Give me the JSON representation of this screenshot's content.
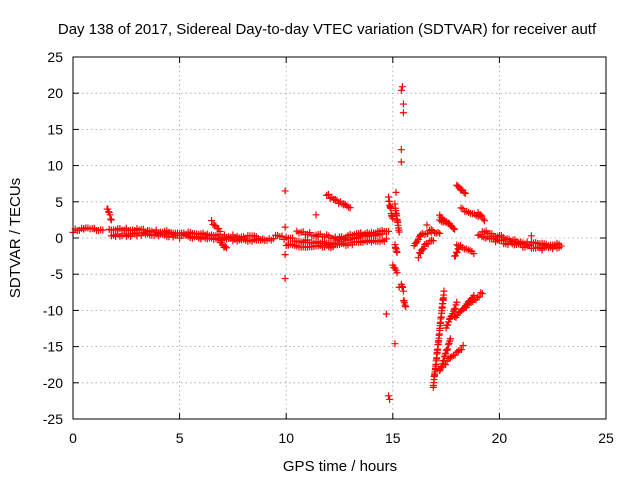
{
  "chart_data": {
    "type": "scatter",
    "title": "Day 138 of 2017, Sidereal Day-to-day VTEC variation (SDTVAR) for receiver autf",
    "xlabel": "GPS time / hours",
    "ylabel": "SDTVAR / TECUs",
    "xlim": [
      0,
      25
    ],
    "ylim": [
      -25,
      25
    ],
    "xticks": [
      "0",
      "5",
      "10",
      "15",
      "20",
      "25"
    ],
    "yticks": [
      "25",
      "20",
      "15",
      "10",
      "5",
      "0",
      "-5",
      "-10",
      "-15",
      "-20",
      "-25"
    ],
    "grid": true,
    "marker": "+",
    "color": "#ff0000",
    "segments": [
      {
        "x": [
          0.0,
          0.5,
          1.0,
          1.4
        ],
        "y": [
          1.0,
          1.3,
          1.2,
          1.0
        ]
      },
      {
        "x": [
          1.6,
          1.8
        ],
        "y": [
          4.2,
          2.5
        ]
      },
      {
        "x": [
          1.7,
          2.5,
          3.5,
          4.5,
          5.5,
          6.5,
          7.5,
          8.5,
          9.4
        ],
        "y": [
          1.0,
          1.2,
          1.0,
          0.8,
          0.6,
          0.4,
          0.2,
          0.1,
          -0.2
        ]
      },
      {
        "x": [
          1.8,
          3.0,
          4.0,
          5.0,
          6.0,
          7.0,
          8.0,
          9.0
        ],
        "y": [
          0.3,
          0.5,
          0.5,
          0.2,
          0.0,
          -0.2,
          -0.3,
          -0.3
        ]
      },
      {
        "x": [
          6.5,
          6.9
        ],
        "y": [
          2.3,
          1.0
        ]
      },
      {
        "x": [
          6.9,
          7.2
        ],
        "y": [
          -0.5,
          -1.5
        ]
      },
      {
        "x": [
          9.5,
          10.8,
          12.0,
          13.5,
          14.8
        ],
        "y": [
          0.2,
          -0.4,
          -0.8,
          0.3,
          0.8
        ]
      },
      {
        "x": [
          10.0,
          11.0,
          12.0,
          13.5,
          14.7
        ],
        "y": [
          -1.0,
          -1.3,
          -1.2,
          -0.6,
          -0.3
        ]
      },
      {
        "x": [
          10.5,
          11.5,
          12.5,
          13.5,
          14.5
        ],
        "y": [
          0.8,
          0.4,
          0.0,
          0.6,
          0.9
        ]
      },
      {
        "x": [
          11.9,
          12.3,
          12.7,
          13.0
        ],
        "y": [
          6.0,
          5.2,
          4.6,
          4.0
        ]
      },
      {
        "x": [
          14.8,
          15.0
        ],
        "y": [
          5.5,
          2.5
        ]
      },
      {
        "x": [
          15.1,
          15.3
        ],
        "y": [
          4.5,
          1.0
        ]
      },
      {
        "x": [
          15.0,
          15.2
        ],
        "y": [
          -3.8,
          -4.8
        ]
      },
      {
        "x": [
          15.1,
          15.2
        ],
        "y": [
          -1.0,
          -2.2
        ]
      },
      {
        "x": [
          15.4,
          15.5
        ],
        "y": [
          -6.5,
          -7.2
        ]
      },
      {
        "x": [
          15.5,
          15.6
        ],
        "y": [
          -8.5,
          -9.5
        ]
      },
      {
        "x": [
          16.0,
          16.3,
          16.8,
          17.2
        ],
        "y": [
          -1.0,
          0.5,
          1.0,
          0.5
        ]
      },
      {
        "x": [
          16.2,
          16.5,
          16.9
        ],
        "y": [
          -2.5,
          -1.0,
          -0.3
        ]
      },
      {
        "x": [
          17.2,
          17.6,
          17.9
        ],
        "y": [
          2.5,
          2.0,
          1.0
        ]
      },
      {
        "x": [
          17.9,
          18.1
        ],
        "y": [
          -2.6,
          -1.4
        ]
      },
      {
        "x": [
          17.2,
          17.5
        ],
        "y": [
          3.0,
          2.0
        ]
      },
      {
        "x": [
          18.0,
          18.4
        ],
        "y": [
          7.5,
          6.0
        ]
      },
      {
        "x": [
          18.2,
          19.0
        ],
        "y": [
          4.0,
          3.0
        ]
      },
      {
        "x": [
          19.0,
          19.3
        ],
        "y": [
          3.5,
          2.5
        ]
      },
      {
        "x": [
          18.0,
          18.8
        ],
        "y": [
          -1.0,
          -2.0
        ]
      },
      {
        "x": [
          16.9,
          17.4
        ],
        "y": [
          -20.5,
          -7.5
        ]
      },
      {
        "x": [
          17.2,
          17.7
        ],
        "y": [
          -18.5,
          -14.0
        ]
      },
      {
        "x": [
          17.4,
          18.3
        ],
        "y": [
          -17.5,
          -15.0
        ]
      },
      {
        "x": [
          17.5,
          18.0
        ],
        "y": [
          -12.5,
          -9.0
        ]
      },
      {
        "x": [
          17.9,
          18.8
        ],
        "y": [
          -11.0,
          -8.0
        ]
      },
      {
        "x": [
          18.3,
          19.2
        ],
        "y": [
          -10.0,
          -7.5
        ]
      },
      {
        "x": [
          19.0,
          20.0,
          21.0,
          22.0,
          22.9
        ],
        "y": [
          0.5,
          -0.5,
          -1.0,
          -1.5,
          -1.2
        ]
      },
      {
        "x": [
          19.2,
          20.0,
          21.0,
          22.0,
          22.8
        ],
        "y": [
          0.9,
          0.2,
          -0.6,
          -0.9,
          -0.7
        ]
      }
    ],
    "scattered_points": [
      {
        "x": 9.95,
        "y": 6.5
      },
      {
        "x": 9.95,
        "y": 1.5
      },
      {
        "x": 9.95,
        "y": -2.3
      },
      {
        "x": 9.95,
        "y": -5.6
      },
      {
        "x": 10.1,
        "y": -1.0
      },
      {
        "x": 11.4,
        "y": 3.2
      },
      {
        "x": 14.7,
        "y": -10.5
      },
      {
        "x": 14.8,
        "y": -21.8
      },
      {
        "x": 14.85,
        "y": -22.3
      },
      {
        "x": 15.1,
        "y": -14.6
      },
      {
        "x": 15.15,
        "y": 6.3
      },
      {
        "x": 15.4,
        "y": 20.4
      },
      {
        "x": 15.45,
        "y": 20.9
      },
      {
        "x": 15.5,
        "y": 18.5
      },
      {
        "x": 15.5,
        "y": 17.3
      },
      {
        "x": 15.4,
        "y": 12.2
      },
      {
        "x": 15.4,
        "y": 10.5
      },
      {
        "x": 15.3,
        "y": -6.8
      },
      {
        "x": 21.5,
        "y": 0.3
      },
      {
        "x": 16.6,
        "y": 1.8
      }
    ]
  }
}
